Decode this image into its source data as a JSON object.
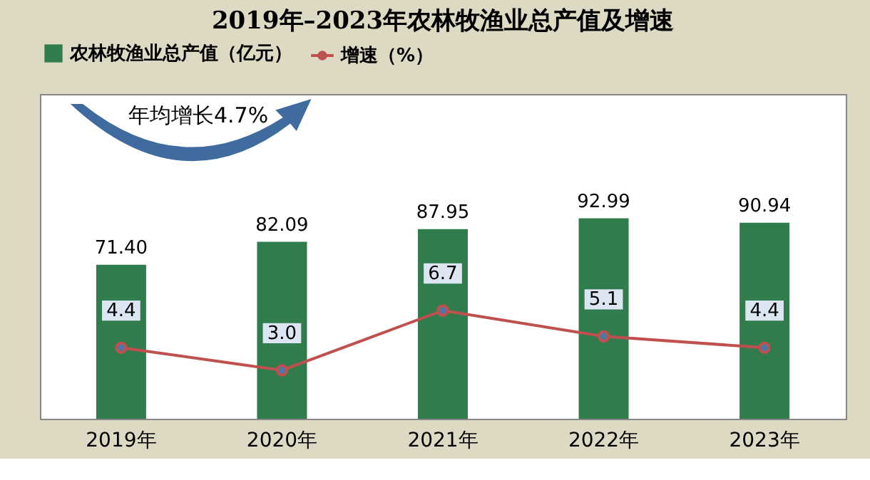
{
  "chart_data": {
    "type": "bar",
    "title": "2019年–2023年农林牧渔业总产值及增速",
    "categories": [
      "2019年",
      "2020年",
      "2021年",
      "2022年",
      "2023年"
    ],
    "series": [
      {
        "name": "农林牧渔业总产值（亿元）",
        "color": "#317c4c",
        "values": [
          71.4,
          82.09,
          87.95,
          92.99,
          90.94
        ],
        "value_labels": [
          "71.40",
          "82.09",
          "87.95",
          "92.99",
          "90.94"
        ]
      },
      {
        "name": "增速（%）",
        "type": "line",
        "axis": "y2",
        "color": "#c0504d",
        "marker": "circle",
        "values": [
          4.4,
          3.0,
          6.7,
          5.1,
          4.4
        ],
        "value_labels": [
          "4.4",
          "3.0",
          "6.7",
          "5.1",
          "4.4"
        ]
      }
    ],
    "annotations": [
      "年均增长4.7%"
    ],
    "data_labels": true,
    "tick_labels": "x",
    "legend": "top"
  }
}
